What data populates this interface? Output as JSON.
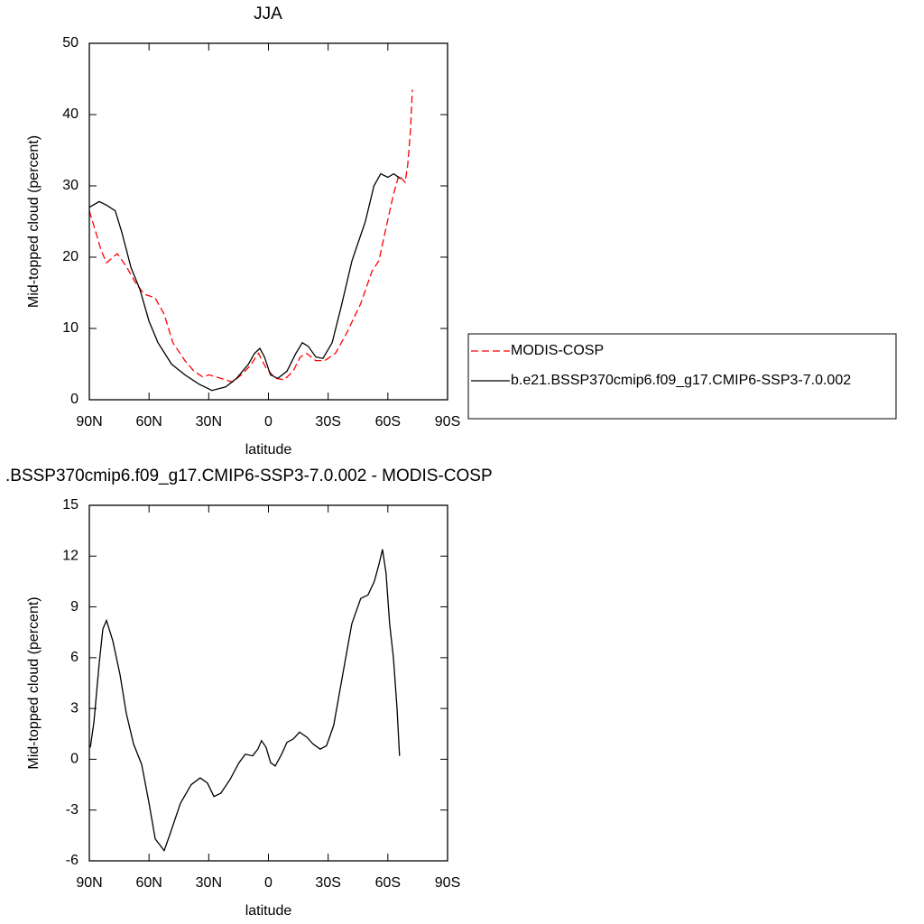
{
  "chart_data": [
    {
      "type": "line",
      "title": "JJA",
      "x_label": "latitude",
      "y_label": "Mid-topped cloud (percent)",
      "xlim": [
        90,
        -90
      ],
      "xticks": [
        {
          "value": 90,
          "label": "90N"
        },
        {
          "value": 60,
          "label": "60N"
        },
        {
          "value": 30,
          "label": "30N"
        },
        0,
        {
          "value": -30,
          "label": "30S"
        },
        {
          "value": -60,
          "label": "60S"
        },
        {
          "value": -90,
          "label": "90S"
        }
      ],
      "ylim": [
        0,
        50
      ],
      "yticks": [
        0,
        10,
        20,
        30,
        40,
        50
      ],
      "legend": "right",
      "series": [
        {
          "name": "MODIS-COSP",
          "color": "#ff0000",
          "style": "dashed",
          "x": [
            90,
            87.3,
            84.1,
            81.4,
            76,
            71.4,
            67,
            62.4,
            57,
            52.4,
            48,
            42,
            37.4,
            33,
            29.8,
            24,
            18.1,
            13.6,
            9.1,
            5,
            1.3,
            -3.4,
            -7.9,
            -12.4,
            -16,
            -19.2,
            -23.7,
            -28.3,
            -33.7,
            -39.6,
            -46.4,
            -52,
            -55.5,
            -59,
            -63,
            -65.5,
            -68.7,
            -70,
            -71.4,
            -72.3
          ],
          "values": [
            26.5,
            24,
            21,
            19.2,
            20.5,
            18.7,
            16.5,
            14.8,
            14.3,
            12,
            8,
            5.5,
            4,
            3.2,
            3.5,
            3,
            2.5,
            3.5,
            4.8,
            6.5,
            4.5,
            3,
            2.8,
            4,
            6,
            6.5,
            5.5,
            5.5,
            6.5,
            9.5,
            13.5,
            18,
            19.5,
            24,
            29,
            31.5,
            30.5,
            33,
            38,
            43.5
          ]
        },
        {
          "name": "b.e21.BSSP370cmip6.f09_g17.CMIP6-SSP3-7.0.002",
          "color": "#000000",
          "style": "solid",
          "x": [
            90,
            85,
            81.4,
            77,
            73.7,
            69,
            64.6,
            60,
            55.5,
            48.7,
            42,
            35,
            28.4,
            21.5,
            16,
            10,
            7,
            4.3,
            2,
            -1,
            -4.7,
            -9.3,
            -13.8,
            -17,
            -20,
            -23.8,
            -27.4,
            -32,
            -36.5,
            -42,
            -48.7,
            -53,
            -56.4,
            -60,
            -63,
            -66.4
          ],
          "values": [
            27,
            27.8,
            27.3,
            26.5,
            23.5,
            18.5,
            15.5,
            11,
            8,
            5,
            3.5,
            2.2,
            1.3,
            1.8,
            3,
            5,
            6.5,
            7.2,
            6,
            3.5,
            3,
            4,
            6.5,
            8,
            7.5,
            6,
            5.8,
            8,
            13,
            19.5,
            25,
            30,
            31.7,
            31.2,
            31.7,
            31
          ]
        }
      ]
    },
    {
      "type": "line",
      "title": ".BSSP370cmip6.f09_g17.CMIP6-SSP3-7.0.002 - MODIS-COSP",
      "x_label": "latitude",
      "y_label": "Mid-topped cloud (percent)",
      "xlim": [
        90,
        -90
      ],
      "xticks": [
        {
          "value": 90,
          "label": "90N"
        },
        {
          "value": 60,
          "label": "60N"
        },
        {
          "value": 30,
          "label": "30N"
        },
        0,
        {
          "value": -30,
          "label": "30S"
        },
        {
          "value": -60,
          "label": "60S"
        },
        {
          "value": -90,
          "label": "90S"
        }
      ],
      "ylim": [
        -6,
        15
      ],
      "yticks": [
        -6,
        -3,
        0,
        3,
        6,
        9,
        12,
        15
      ],
      "series": [
        {
          "color": "#000000",
          "style": "solid",
          "x": [
            89.5,
            87.7,
            85,
            83.2,
            81.4,
            78.2,
            74.6,
            71.4,
            67.8,
            63.7,
            60,
            56.9,
            52.4,
            49.7,
            44.2,
            38.8,
            34.3,
            30.7,
            27.4,
            23.9,
            19.3,
            14.8,
            11.6,
            8,
            5.3,
            3.5,
            1.2,
            -1.1,
            -3.4,
            -6.6,
            -9.3,
            -12.5,
            -15.6,
            -19.3,
            -22.4,
            -26,
            -29.2,
            -32.8,
            -37.3,
            -41.9,
            -46.4,
            -50,
            -53.2,
            -55.5,
            -57.3,
            -59.1,
            -60.9,
            -62.8,
            -64.6,
            -65.9
          ],
          "values": [
            0.7,
            2.2,
            5.7,
            7.7,
            8.2,
            7,
            5,
            2.7,
            0.9,
            -0.3,
            -2.6,
            -4.7,
            -5.4,
            -4.5,
            -2.6,
            -1.5,
            -1.1,
            -1.4,
            -2.2,
            -2,
            -1.2,
            -0.2,
            0.3,
            0.2,
            0.6,
            1.1,
            0.7,
            -0.2,
            -0.4,
            0.3,
            1,
            1.2,
            1.6,
            1.3,
            0.9,
            0.6,
            0.8,
            2,
            5,
            8,
            9.5,
            9.7,
            10.5,
            11.5,
            12.4,
            11,
            8,
            6,
            3,
            0.2
          ]
        }
      ]
    }
  ]
}
